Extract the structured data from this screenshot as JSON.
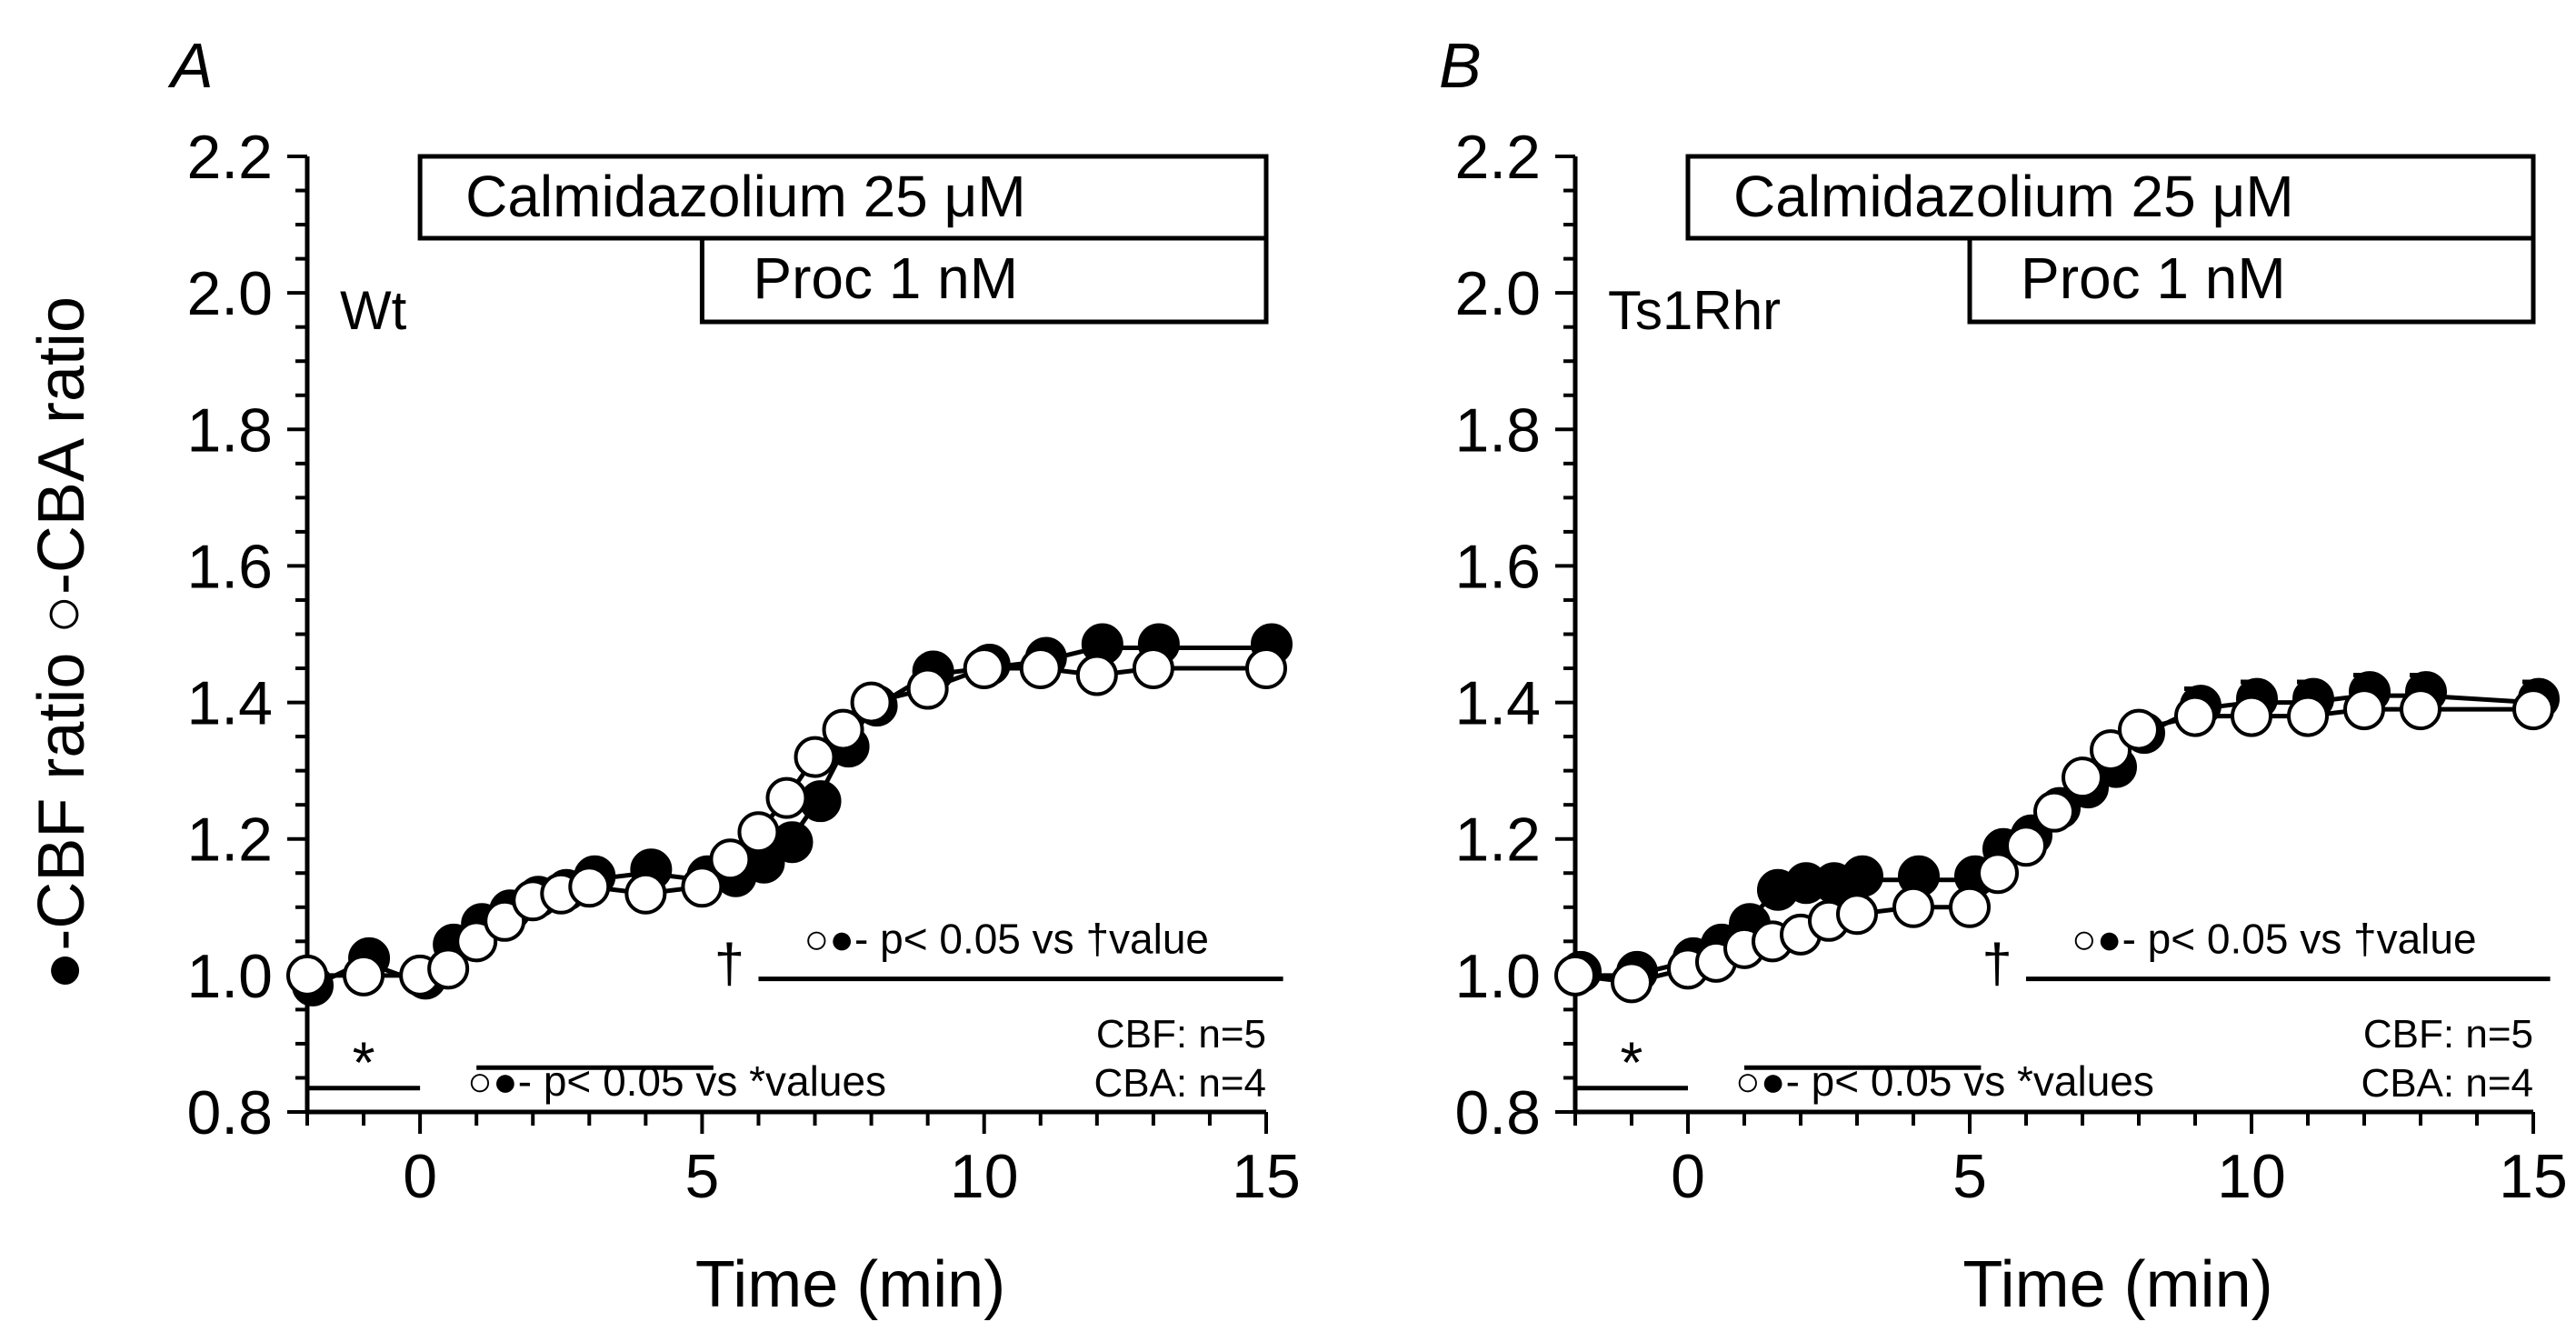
{
  "chart_data": [
    {
      "type": "scatter",
      "panel_label": "A",
      "group_label": "Wt",
      "ylabel": "●-CBF ratio ○-CBA ratio",
      "xlabel": "Time (min)",
      "xlim": [
        -2,
        15
      ],
      "ylim": [
        0.8,
        2.2
      ],
      "xticks": [
        0,
        5,
        10,
        15
      ],
      "yticks": [
        0.8,
        1.0,
        1.2,
        1.4,
        1.6,
        1.8,
        2.0,
        2.2
      ],
      "ytick_labels": [
        "0.8",
        "1.0",
        "1.2",
        "1.4",
        "1.6",
        "1.8",
        "2.0",
        "2.2"
      ],
      "treatments": [
        {
          "label": "Calmidazolium 25 μM",
          "x_start": 0,
          "x_end": 15
        },
        {
          "label": "Proc 1 nM",
          "x_start": 5,
          "x_end": 15
        }
      ],
      "significance": [
        {
          "label": "○●- p< 0.05 vs *values",
          "x_start": 1,
          "x_end": 5.2,
          "y": 0.865
        },
        {
          "label": "○●- p< 0.05 vs †value",
          "x_start": 6,
          "x_end": 15.3,
          "y": 0.995
        }
      ],
      "baseline_marker": {
        "label": "*",
        "x_start": -2,
        "x_end": 0,
        "y": 0.835
      },
      "reference_marker": {
        "label": "†",
        "x": 5
      },
      "n_labels": [
        "CBF: n=5",
        "CBA: n=4"
      ],
      "series": [
        {
          "name": "CBF",
          "marker": "filled",
          "x": [
            -2,
            -1,
            0,
            0.5,
            1,
            1.5,
            2,
            2.5,
            3,
            4,
            5,
            5.5,
            6,
            6.5,
            7,
            7.5,
            8,
            9,
            10,
            11,
            12,
            13,
            15
          ],
          "y": [
            0.98,
            1.02,
            0.99,
            1.04,
            1.07,
            1.09,
            1.11,
            1.12,
            1.14,
            1.15,
            1.14,
            1.14,
            1.16,
            1.19,
            1.25,
            1.33,
            1.39,
            1.44,
            1.45,
            1.46,
            1.48,
            1.48,
            1.48
          ],
          "err": [
            0,
            0,
            0,
            0,
            0,
            0,
            0,
            0,
            0,
            0,
            0,
            0,
            0,
            0,
            0,
            0,
            0,
            0,
            0,
            0,
            0,
            0,
            0
          ]
        },
        {
          "name": "CBA",
          "marker": "open",
          "x": [
            -2,
            -1,
            0,
            0.5,
            1,
            1.5,
            2,
            2.5,
            3,
            4,
            5,
            5.5,
            6,
            6.5,
            7,
            7.5,
            8,
            9,
            10,
            11,
            12,
            13,
            15
          ],
          "y": [
            1.0,
            1.0,
            1.0,
            1.01,
            1.05,
            1.08,
            1.11,
            1.12,
            1.13,
            1.12,
            1.13,
            1.17,
            1.21,
            1.26,
            1.32,
            1.36,
            1.4,
            1.42,
            1.45,
            1.45,
            1.44,
            1.45,
            1.45
          ],
          "err": [
            0,
            0,
            0,
            0,
            0,
            0,
            0,
            0,
            0,
            0,
            0,
            0,
            0,
            0,
            0,
            0,
            0,
            0,
            0,
            0,
            0,
            0,
            0
          ]
        }
      ]
    },
    {
      "type": "scatter",
      "panel_label": "B",
      "group_label": "Ts1Rhr",
      "ylabel": "",
      "xlabel": "Time (min)",
      "xlim": [
        -2,
        15
      ],
      "ylim": [
        0.8,
        2.2
      ],
      "xticks": [
        0,
        5,
        10,
        15
      ],
      "yticks": [
        0.8,
        1.0,
        1.2,
        1.4,
        1.6,
        1.8,
        2.0,
        2.2
      ],
      "ytick_labels": [
        "0.8",
        "1.0",
        "1.2",
        "1.4",
        "1.6",
        "1.8",
        "2.0",
        "2.2"
      ],
      "treatments": [
        {
          "label": "Calmidazolium 25 μM",
          "x_start": 0,
          "x_end": 15
        },
        {
          "label": "Proc 1 nM",
          "x_start": 5,
          "x_end": 15
        }
      ],
      "significance": [
        {
          "label": "○●- p< 0.05 vs *values",
          "x_start": 1,
          "x_end": 5.2,
          "y": 0.865
        },
        {
          "label": "○●- p< 0.05 vs †value",
          "x_start": 6,
          "x_end": 15.3,
          "y": 0.995
        }
      ],
      "baseline_marker": {
        "label": "*",
        "x_start": -2,
        "x_end": 0,
        "y": 0.835
      },
      "reference_marker": {
        "label": "†",
        "x": 5
      },
      "n_labels": [
        "CBF: n=5",
        "CBA: n=4"
      ],
      "series": [
        {
          "name": "CBF",
          "marker": "filled",
          "x": [
            -2,
            -1,
            0,
            0.5,
            1,
            1.5,
            2,
            2.5,
            3,
            4,
            5,
            5.5,
            6,
            6.5,
            7,
            7.5,
            8,
            9,
            10,
            11,
            12,
            13,
            15
          ],
          "y": [
            1.0,
            1.0,
            1.02,
            1.04,
            1.07,
            1.12,
            1.13,
            1.13,
            1.14,
            1.14,
            1.14,
            1.18,
            1.2,
            1.24,
            1.27,
            1.3,
            1.35,
            1.39,
            1.4,
            1.4,
            1.41,
            1.41,
            1.4
          ],
          "err": [
            0,
            0,
            0,
            0,
            0,
            0.02,
            0.02,
            0.02,
            0.02,
            0.02,
            0.02,
            0,
            0,
            0,
            0,
            0,
            0.03,
            0.03,
            0.03,
            0.03,
            0.03,
            0.03,
            0.03
          ]
        },
        {
          "name": "CBA",
          "marker": "open",
          "x": [
            -2,
            -1,
            0,
            0.5,
            1,
            1.5,
            2,
            2.5,
            3,
            4,
            5,
            5.5,
            6,
            6.5,
            7,
            7.5,
            8,
            9,
            10,
            11,
            12,
            13,
            15
          ],
          "y": [
            1.0,
            0.99,
            1.01,
            1.02,
            1.04,
            1.05,
            1.06,
            1.08,
            1.09,
            1.1,
            1.1,
            1.15,
            1.19,
            1.24,
            1.29,
            1.33,
            1.36,
            1.38,
            1.38,
            1.38,
            1.39,
            1.39,
            1.39
          ],
          "err": [
            0,
            0,
            0,
            0,
            0,
            0,
            0,
            0,
            0,
            0,
            0,
            0,
            0,
            0,
            0,
            0,
            0,
            0,
            0,
            0,
            0,
            0,
            0
          ]
        }
      ]
    }
  ]
}
